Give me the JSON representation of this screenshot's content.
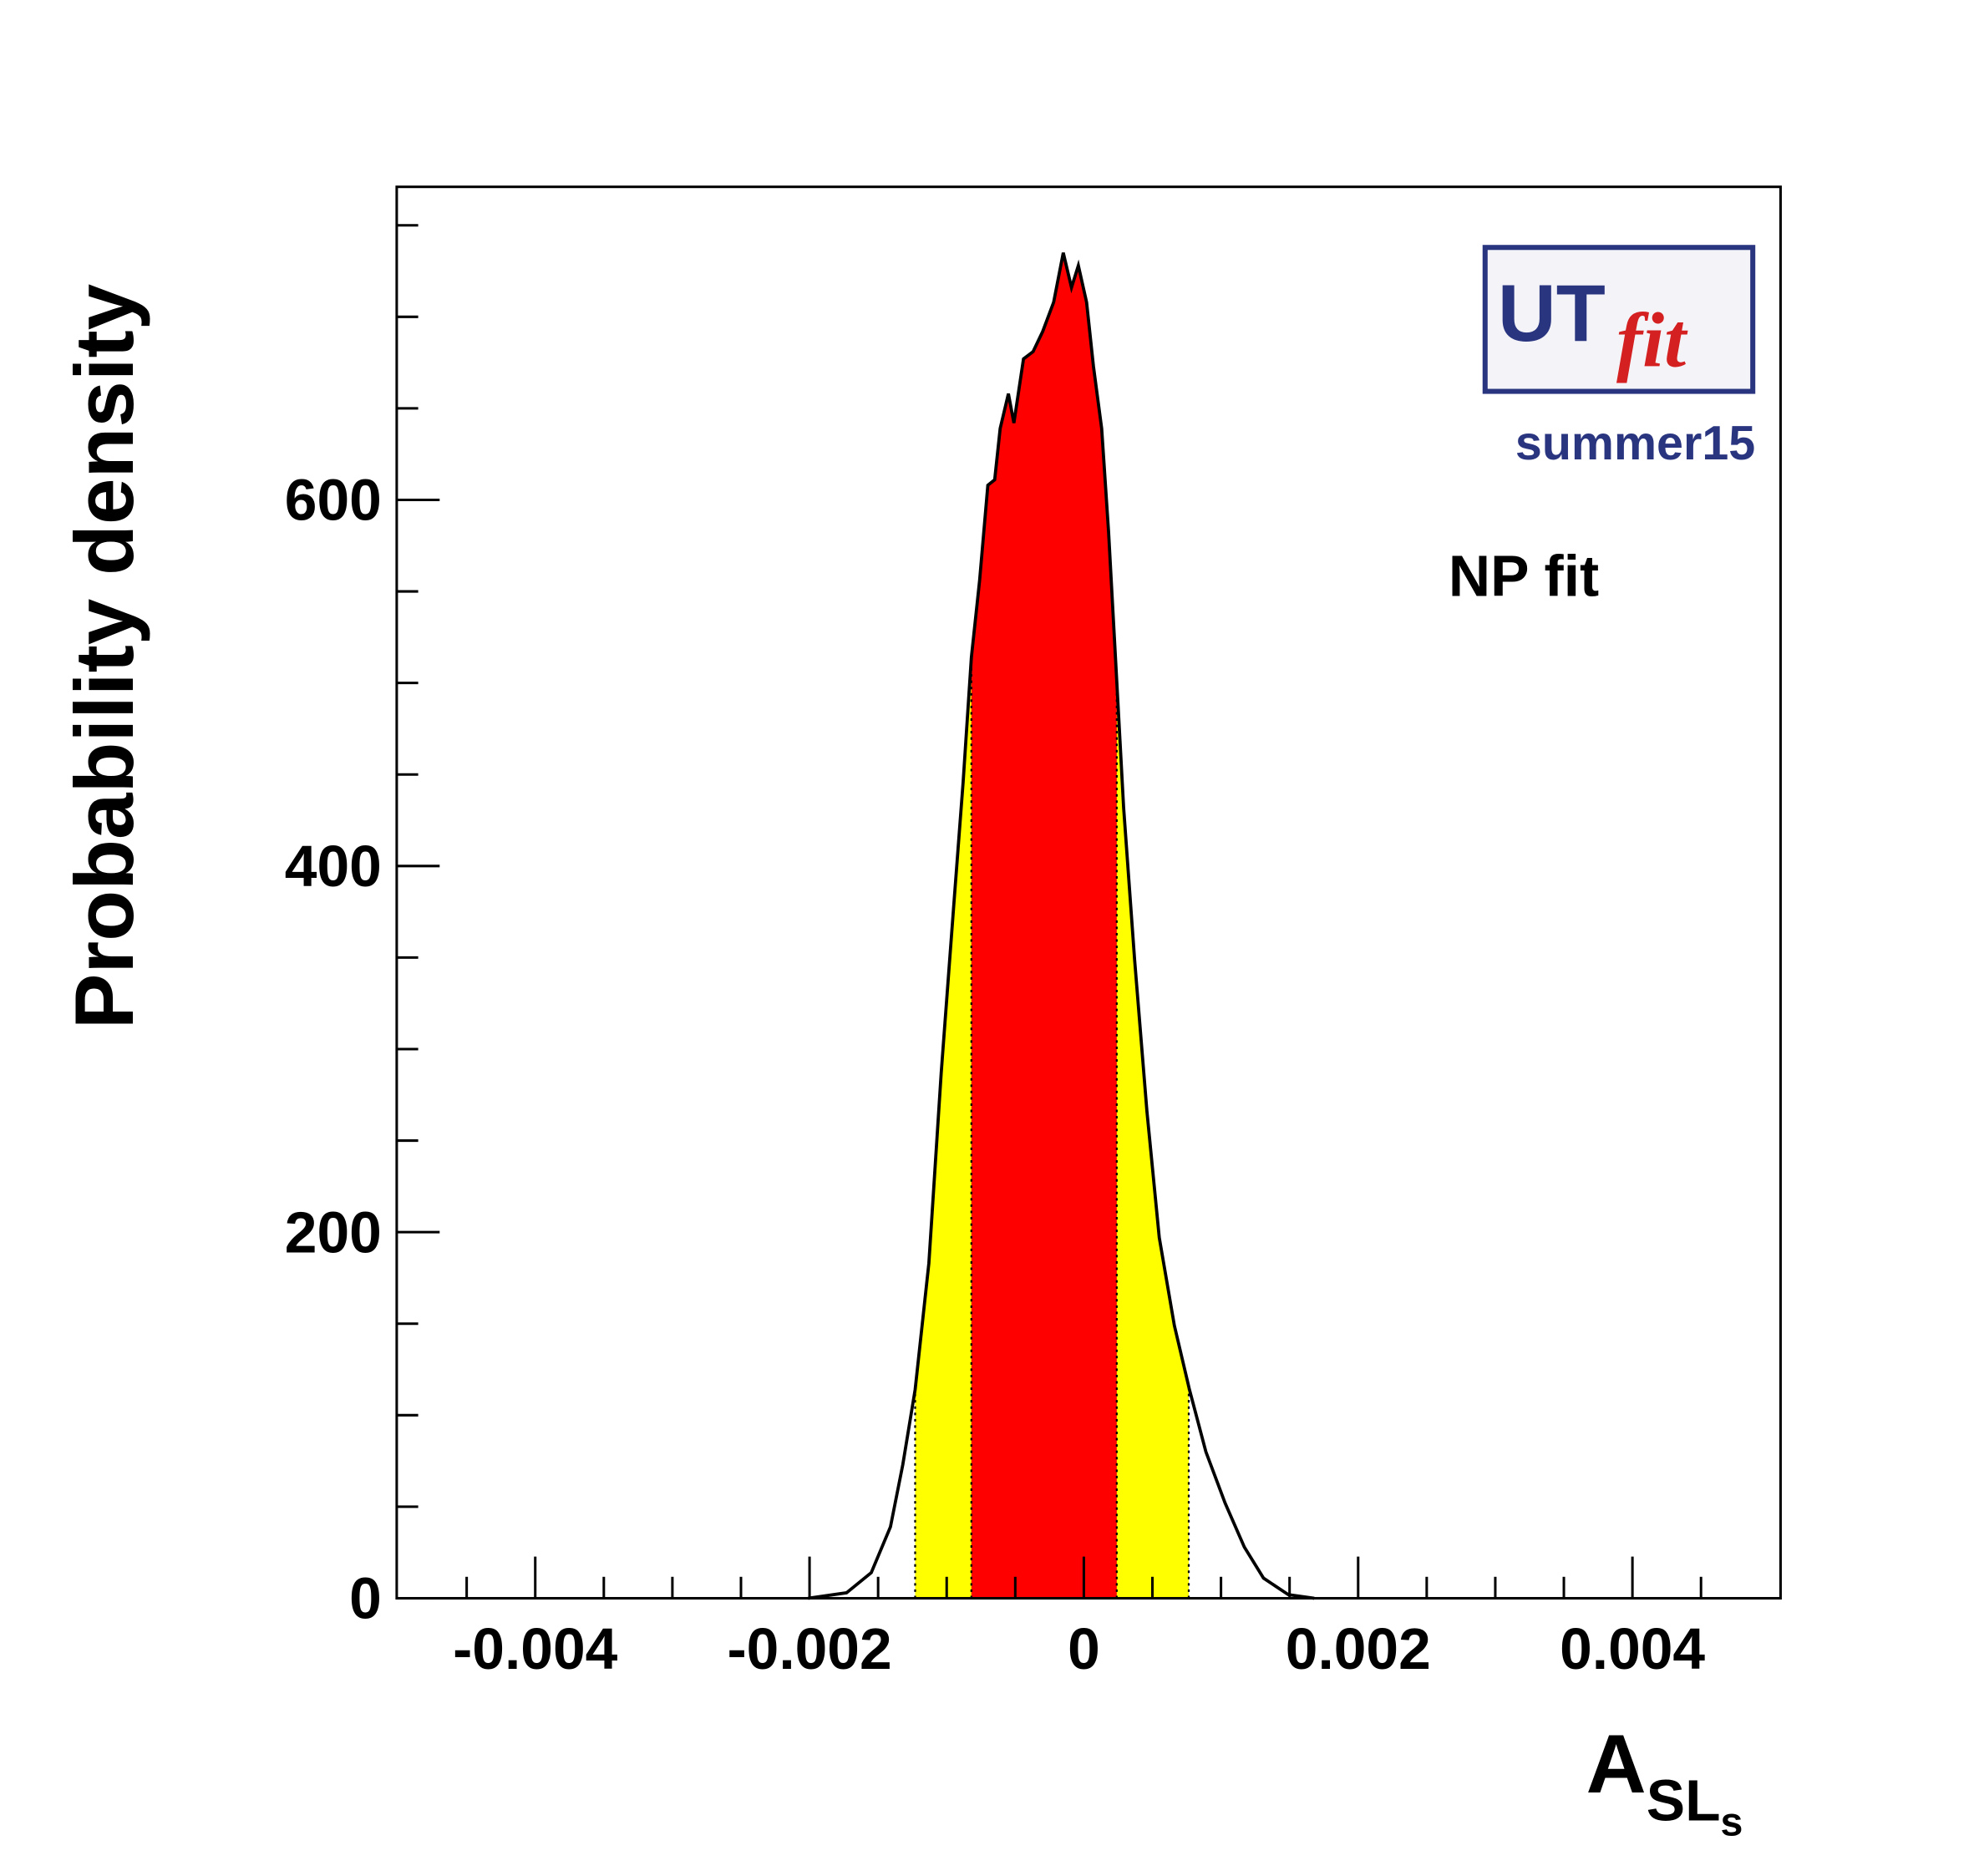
{
  "chart_data": {
    "type": "area",
    "x_label": "A",
    "x_label_sub": "SL",
    "x_label_subsub": "s",
    "y_label": "Probability density",
    "logo": {
      "text": "UT",
      "sub": "fit",
      "caption": "summer15"
    },
    "annotations": [
      "NP fit"
    ],
    "x": [
      -0.00201,
      -0.00173,
      -0.00155,
      -0.00141,
      -0.00132,
      -0.00123,
      -0.00113,
      -0.00104,
      -0.00095,
      -0.00088,
      -0.00082,
      -0.00076,
      -0.0007,
      -0.00065,
      -0.00061,
      -0.00055,
      -0.00051,
      -0.00044,
      -0.00037,
      -0.0003,
      -0.00022,
      -0.00015,
      -9e-05,
      -4e-05,
      2e-05,
      7e-05,
      0.00013,
      0.00018,
      0.00024,
      0.00029,
      0.00037,
      0.00046,
      0.00055,
      0.00066,
      0.00077,
      0.00089,
      0.00103,
      0.00117,
      0.00131,
      0.00149,
      0.00168
    ],
    "values": [
      0,
      3,
      14,
      39,
      73,
      114,
      183,
      287,
      377,
      446,
      514,
      556,
      608,
      611,
      639,
      658,
      642,
      677,
      681,
      692,
      708,
      735,
      716,
      728,
      708,
      673,
      639,
      583,
      501,
      432,
      349,
      266,
      197,
      149,
      114,
      80,
      52,
      28,
      11,
      2,
      0
    ],
    "line_color": "#000000",
    "bands": [
      {
        "color": "#ffff00",
        "range": [
          -0.00123,
          0.000765
        ]
      },
      {
        "color": "#ff0000",
        "range": [
          -0.00082,
          0.00024
        ]
      }
    ],
    "xlim": [
      -0.00501,
      0.00508
    ],
    "ylim": [
      0,
      771
    ],
    "xticks": [
      -0.004,
      -0.002,
      0,
      0.002,
      0.004
    ],
    "xminorticks": [
      -0.0045,
      -0.0035,
      -0.003,
      -0.0025,
      -0.0015,
      -0.001,
      -0.0005,
      0.0005,
      0.001,
      0.0015,
      0.0025,
      0.003,
      0.0035,
      0.0045
    ],
    "yticks": [
      0,
      200,
      400,
      600
    ],
    "yminorticks": [
      50,
      100,
      150,
      250,
      300,
      350,
      450,
      500,
      550,
      650,
      700,
      750
    ]
  }
}
